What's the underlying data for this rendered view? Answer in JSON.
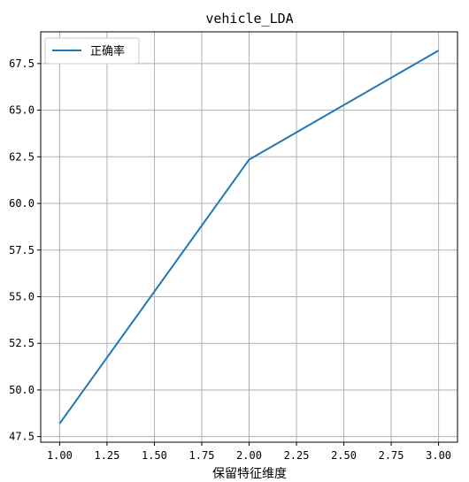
{
  "chart_data": {
    "type": "line",
    "title": "vehicle_LDA",
    "xlabel": "保留特征维度",
    "ylabel": "",
    "x": [
      1.0,
      2.0,
      3.0
    ],
    "series": [
      {
        "name": "正确率",
        "values": [
          48.2,
          62.35,
          68.2
        ],
        "color": "#1f77b4"
      }
    ],
    "xticks": [
      "1.00",
      "1.25",
      "1.50",
      "1.75",
      "2.00",
      "2.25",
      "2.50",
      "2.75",
      "3.00"
    ],
    "yticks": [
      "47.5",
      "50.0",
      "52.5",
      "55.0",
      "57.5",
      "60.0",
      "62.5",
      "65.0",
      "67.5"
    ],
    "xlim": [
      0.9,
      3.1
    ],
    "ylim": [
      47.2,
      69.2
    ],
    "grid": true,
    "legend_position": "top-left"
  }
}
